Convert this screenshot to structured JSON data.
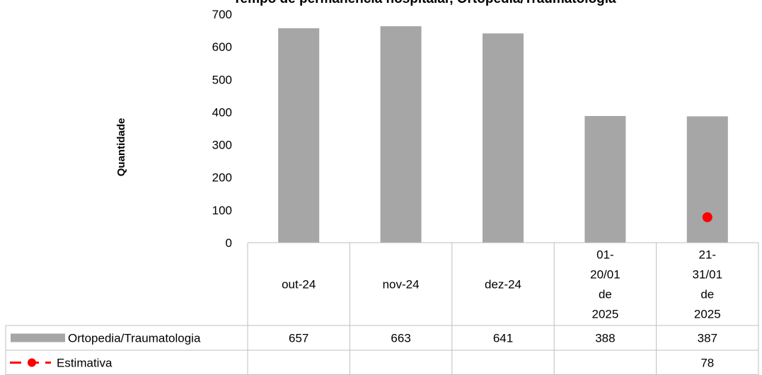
{
  "chart_data": {
    "type": "bar",
    "title": "Tempo de permanência hospitalar, Ortopedia/Traumatologia",
    "ylabel": "Quantidade",
    "xlabel": "",
    "ylim": [
      0,
      700
    ],
    "yticks": [
      0,
      100,
      200,
      300,
      400,
      500,
      600,
      700
    ],
    "categories": [
      [
        "out-24"
      ],
      [
        "nov-24"
      ],
      [
        "dez-24"
      ],
      [
        "01-",
        "20/01",
        "de",
        "2025"
      ],
      [
        "21-",
        "31/01",
        "de",
        "2025"
      ]
    ],
    "series": [
      {
        "name": "Ortopedia/Traumatologia",
        "type": "bar",
        "color": "#a6a6a6",
        "values": [
          657,
          663,
          641,
          388,
          387
        ],
        "labels": [
          "657",
          "663",
          "641",
          "388",
          "387"
        ]
      },
      {
        "name": "Estimativa",
        "type": "line-marker",
        "color": "#ff0000",
        "values": [
          null,
          null,
          null,
          null,
          78
        ],
        "labels": [
          "",
          "",
          "",
          "",
          "78"
        ]
      }
    ],
    "legend": "data-table",
    "grid": false
  }
}
